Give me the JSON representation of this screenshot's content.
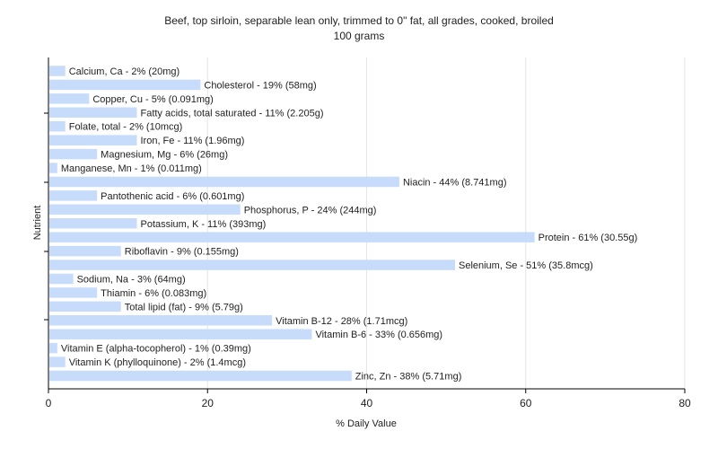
{
  "chart_data": {
    "type": "bar",
    "orientation": "horizontal",
    "title": "Beef, top sirloin, separable lean only, trimmed to 0\" fat, all grades, cooked, broiled",
    "subtitle": "100 grams",
    "xlabel": "% Daily Value",
    "ylabel": "Nutrient",
    "xlim": [
      0,
      80
    ],
    "x_ticks": [
      0,
      20,
      40,
      60,
      80
    ],
    "grid": true,
    "bar_color": "#c6dcfa",
    "categories": [
      "Calcium, Ca",
      "Cholesterol",
      "Copper, Cu",
      "Fatty acids, total saturated",
      "Folate, total",
      "Iron, Fe",
      "Magnesium, Mg",
      "Manganese, Mn",
      "Niacin",
      "Pantothenic acid",
      "Phosphorus, P",
      "Potassium, K",
      "Protein",
      "Riboflavin",
      "Selenium, Se",
      "Sodium, Na",
      "Thiamin",
      "Total lipid (fat)",
      "Vitamin B-12",
      "Vitamin B-6",
      "Vitamin E (alpha-tocopherol)",
      "Vitamin K (phylloquinone)",
      "Zinc, Zn"
    ],
    "values": [
      2,
      19,
      5,
      11,
      2,
      11,
      6,
      1,
      44,
      6,
      24,
      11,
      61,
      9,
      51,
      3,
      6,
      9,
      28,
      33,
      1,
      2,
      38
    ],
    "labels": [
      "Calcium, Ca - 2% (20mg)",
      "Cholesterol - 19% (58mg)",
      "Copper, Cu - 5% (0.091mg)",
      "Fatty acids, total saturated - 11% (2.205g)",
      "Folate, total - 2% (10mcg)",
      "Iron, Fe - 11% (1.96mg)",
      "Magnesium, Mg - 6% (26mg)",
      "Manganese, Mn - 1% (0.011mg)",
      "Niacin - 44% (8.741mg)",
      "Pantothenic acid - 6% (0.601mg)",
      "Phosphorus, P - 24% (244mg)",
      "Potassium, K - 11% (393mg)",
      "Protein - 61% (30.55g)",
      "Riboflavin - 9% (0.155mg)",
      "Selenium, Se - 51% (35.8mcg)",
      "Sodium, Na - 3% (64mg)",
      "Thiamin - 6% (0.083mg)",
      "Total lipid (fat) - 9% (5.79g)",
      "Vitamin B-12 - 28% (1.71mcg)",
      "Vitamin B-6 - 33% (0.656mg)",
      "Vitamin E (alpha-tocopherol) - 1% (0.39mg)",
      "Vitamin K (phylloquinone) - 2% (1.4mcg)",
      "Zinc, Zn - 38% (5.71mg)"
    ]
  }
}
